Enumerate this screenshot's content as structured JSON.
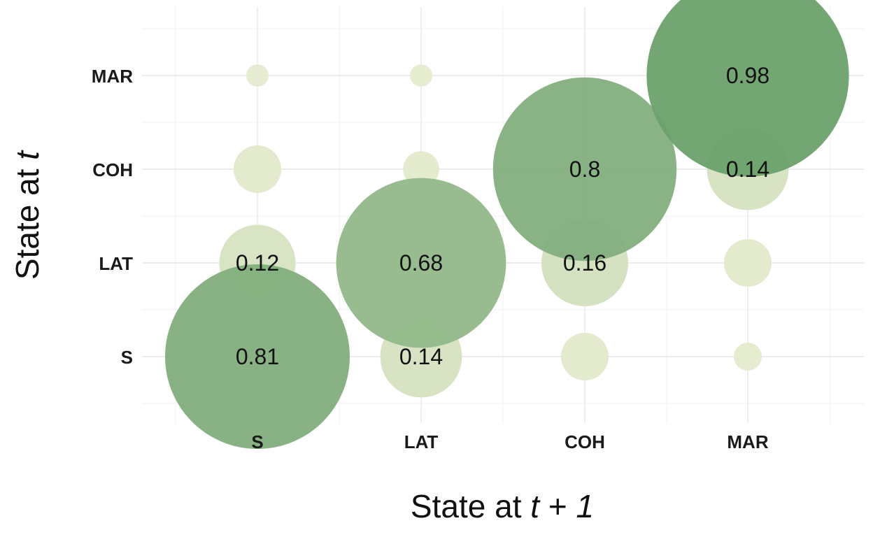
{
  "chart_data": {
    "type": "scatter",
    "subtype": "bubble-matrix",
    "x_categories": [
      "S",
      "LAT",
      "COH",
      "MAR"
    ],
    "y_categories": [
      "S",
      "LAT",
      "COH",
      "MAR"
    ],
    "xlabel": {
      "prefix": "State at ",
      "var": "t",
      "suffix": " + ",
      "var2": "1"
    },
    "ylabel": {
      "prefix": "State at ",
      "var": "t"
    },
    "grid": true,
    "legend": "none",
    "colors": {
      "low": "#e6ecce",
      "high": "#6a9f6a"
    },
    "cells": [
      {
        "from": "S",
        "to": "S",
        "value": 0.81,
        "label": "0.81"
      },
      {
        "from": "S",
        "to": "LAT",
        "value": 0.14,
        "label": "0.14"
      },
      {
        "from": "S",
        "to": "COH",
        "value": 0.04,
        "label": ""
      },
      {
        "from": "S",
        "to": "MAR",
        "value": 0.01,
        "label": ""
      },
      {
        "from": "LAT",
        "to": "S",
        "value": 0.12,
        "label": "0.12"
      },
      {
        "from": "LAT",
        "to": "LAT",
        "value": 0.68,
        "label": "0.68"
      },
      {
        "from": "LAT",
        "to": "COH",
        "value": 0.16,
        "label": "0.16"
      },
      {
        "from": "LAT",
        "to": "MAR",
        "value": 0.04,
        "label": ""
      },
      {
        "from": "COH",
        "to": "S",
        "value": 0.04,
        "label": ""
      },
      {
        "from": "COH",
        "to": "LAT",
        "value": 0.02,
        "label": ""
      },
      {
        "from": "COH",
        "to": "COH",
        "value": 0.8,
        "label": "0.8"
      },
      {
        "from": "COH",
        "to": "MAR",
        "value": 0.14,
        "label": "0.14"
      },
      {
        "from": "MAR",
        "to": "S",
        "value": 0.005,
        "label": ""
      },
      {
        "from": "MAR",
        "to": "LAT",
        "value": 0.005,
        "label": ""
      },
      {
        "from": "MAR",
        "to": "COH",
        "value": 0.0,
        "label": ""
      },
      {
        "from": "MAR",
        "to": "MAR",
        "value": 0.98,
        "label": "0.98"
      }
    ]
  }
}
